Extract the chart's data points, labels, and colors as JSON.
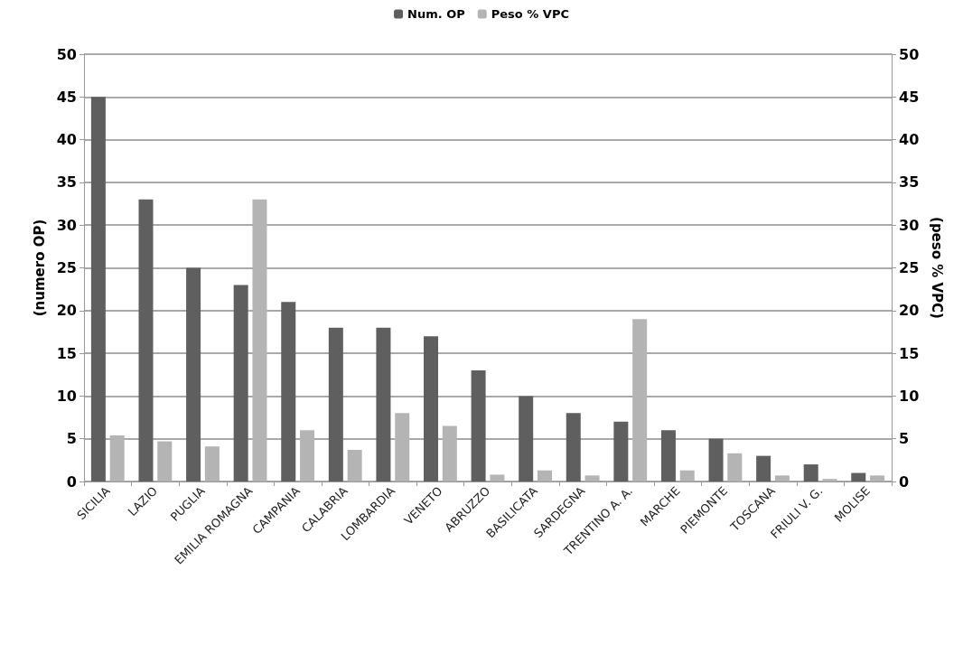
{
  "chart_data": {
    "type": "bar",
    "ylabel": "(numero OP)",
    "y2label": "(peso % VPC)",
    "categories": [
      "SICILIA",
      "LAZIO",
      "PUGLIA",
      "EMILIA ROMAGNA",
      "CAMPANIA",
      "CALABRIA",
      "LOMBARDIA",
      "VENETO",
      "ABRUZZO",
      "BASILICATA",
      "SARDEGNA",
      "TRENTINO A. A.",
      "MARCHE",
      "PIEMONTE",
      "TOSCANA",
      "FRIULI V. G.",
      "MOLISE"
    ],
    "series": [
      {
        "name": "Num. OP",
        "color": "#5f5f5f",
        "values": [
          45,
          33,
          25,
          23,
          21,
          18,
          18,
          17,
          13,
          10,
          8,
          7,
          6,
          5,
          3,
          2,
          1
        ]
      },
      {
        "name": "Peso % VPC",
        "color": "#b4b4b4",
        "axis": "y2",
        "values": [
          5.4,
          4.7,
          4.1,
          33,
          6.0,
          3.7,
          8.0,
          6.5,
          0.8,
          1.3,
          0.7,
          19,
          1.3,
          3.3,
          0.7,
          0.3,
          0.7
        ]
      }
    ],
    "ylim": [
      0,
      50
    ],
    "yticks": [
      0,
      5,
      10,
      15,
      20,
      25,
      30,
      35,
      40,
      45,
      50
    ],
    "y2lim": [
      0,
      50
    ],
    "y2ticks": [
      0,
      5,
      10,
      15,
      20,
      25,
      30,
      35,
      40,
      45,
      50
    ],
    "grid": "y",
    "legend": "top"
  }
}
